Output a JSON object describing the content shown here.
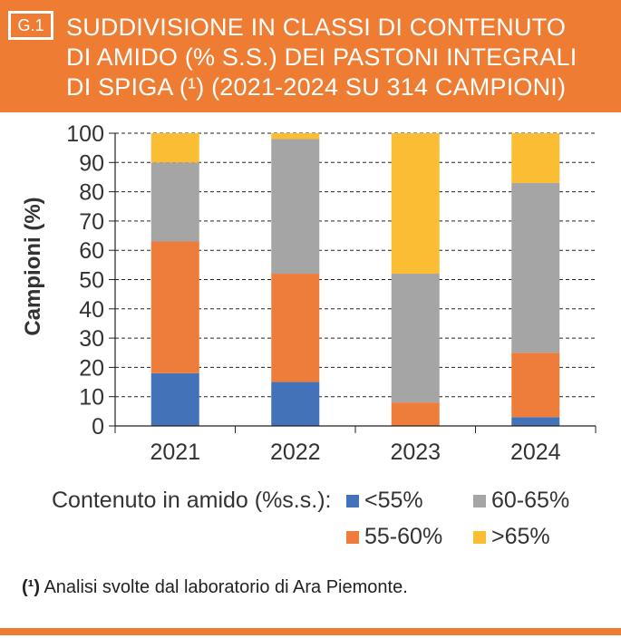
{
  "header": {
    "badge": "G.1",
    "title_lines": [
      "SUDDIVISIONE IN CLASSI DI CONTENUTO",
      "DI AMIDO (% S.S.) DEI PASTONI INTEGRALI",
      "DI SPIGA (¹) (2021-2024 SU 314 CAMPIONI)"
    ]
  },
  "colors": {
    "accent": "#ee7d33",
    "blue": "#4472b8",
    "orange": "#ee7d3c",
    "gray": "#a5a5a5",
    "yellow": "#fbbd33"
  },
  "chart_data": {
    "type": "bar",
    "stacked": true,
    "categories": [
      "2021",
      "2022",
      "2023",
      "2024"
    ],
    "series": [
      {
        "name": "<55%",
        "color": "#4472b8",
        "values": [
          18,
          15,
          0,
          3
        ]
      },
      {
        "name": "55-60%",
        "color": "#ee7d3c",
        "values": [
          45,
          37,
          8,
          22
        ]
      },
      {
        "name": "60-65%",
        "color": "#a5a5a5",
        "values": [
          27,
          46,
          44,
          58
        ]
      },
      {
        "name": ">65%",
        "color": "#fbbd33",
        "values": [
          10,
          2,
          48,
          17
        ]
      }
    ],
    "ylabel": "Campioni (%)",
    "ylim": [
      0,
      100
    ],
    "yticks": [
      "0",
      "10",
      "20",
      "30",
      "40",
      "50",
      "60",
      "70",
      "80",
      "90",
      "100"
    ],
    "grid": true,
    "legend_position": "bottom"
  },
  "legend": {
    "title": "Contenuto in amido (%s.s.):",
    "items": [
      "<55%",
      "60-65%",
      "55-60%",
      ">65%"
    ]
  },
  "footnote": {
    "marker": "(¹)",
    "text": " Analisi svolte dal laboratorio di Ara Piemonte."
  }
}
